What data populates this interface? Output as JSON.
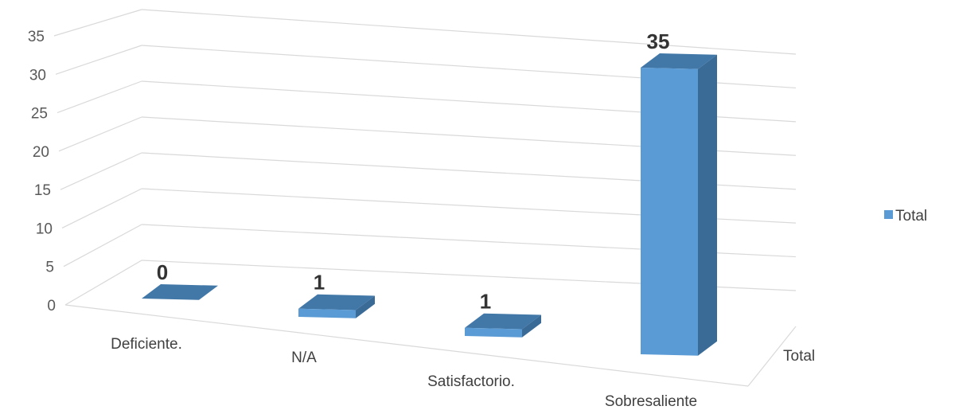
{
  "chart_data": {
    "type": "bar",
    "style": "3d-perspective-column",
    "categories": [
      "Deficiente.",
      "N/A",
      "Satisfactorio.",
      "Sobresaliente"
    ],
    "series": [
      {
        "name": "Total",
        "values": [
          0,
          1,
          1,
          35
        ]
      }
    ],
    "depth_axis_label": "Total",
    "y_ticks": [
      0,
      5,
      10,
      15,
      20,
      25,
      30,
      35
    ],
    "ylim": [
      0,
      35
    ],
    "grid": true,
    "legend": "right",
    "colors": {
      "front": "#5b9bd5",
      "top": "#4178a8",
      "side": "#3a6a96",
      "grid": "#d9d9d9"
    }
  }
}
